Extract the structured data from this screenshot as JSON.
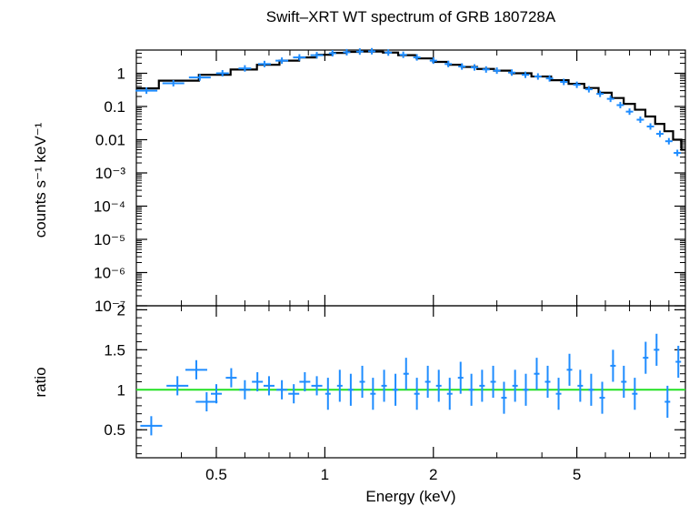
{
  "chart_data": [
    {
      "type": "scatter",
      "panel": "spectrum",
      "title": "Swift–XRT WT spectrum of GRB 180728A",
      "ylabel": "counts s⁻¹ keV⁻¹",
      "xlabel": "",
      "x_scale": "log",
      "y_scale": "log",
      "xlim": [
        0.3,
        10
      ],
      "ylim": [
        1e-07,
        5
      ],
      "ytick_labels": [
        "1",
        "0.1",
        "0.01",
        "10⁻³",
        "10⁻⁴",
        "10⁻⁵",
        "10⁻⁶",
        "10⁻⁷"
      ],
      "colors": {
        "data": "#1e8cff",
        "model": "#000000"
      },
      "data_x": [
        0.32,
        0.38,
        0.45,
        0.52,
        0.6,
        0.68,
        0.76,
        0.85,
        0.95,
        1.05,
        1.15,
        1.25,
        1.35,
        1.5,
        1.65,
        1.8,
        2.0,
        2.2,
        2.4,
        2.6,
        2.8,
        3.0,
        3.3,
        3.6,
        3.9,
        4.2,
        4.6,
        5.0,
        5.4,
        5.8,
        6.2,
        6.6,
        7.0,
        7.5,
        8.0,
        8.5,
        9.0,
        9.5
      ],
      "data_y": [
        0.3,
        0.5,
        0.75,
        1.0,
        1.4,
        1.9,
        2.4,
        3.0,
        3.5,
        4.0,
        4.3,
        4.5,
        4.6,
        4.2,
        3.6,
        3.0,
        2.4,
        1.9,
        1.6,
        1.5,
        1.3,
        1.2,
        1.05,
        0.9,
        0.8,
        0.7,
        0.55,
        0.45,
        0.33,
        0.24,
        0.17,
        0.11,
        0.07,
        0.04,
        0.025,
        0.015,
        0.009,
        0.004
      ],
      "model_x": [
        0.3,
        0.4,
        0.5,
        0.6,
        0.7,
        0.8,
        0.9,
        1.0,
        1.1,
        1.2,
        1.3,
        1.4,
        1.5,
        1.7,
        1.9,
        2.1,
        2.3,
        2.5,
        2.8,
        3.1,
        3.5,
        4.0,
        4.5,
        5.0,
        5.5,
        6.0,
        6.5,
        7.0,
        7.5,
        8.0,
        8.5,
        9.0,
        9.5,
        10.0
      ],
      "model_y": [
        0.35,
        0.6,
        0.9,
        1.3,
        1.8,
        2.4,
        3.0,
        3.6,
        4.1,
        4.4,
        4.5,
        4.5,
        4.2,
        3.5,
        2.8,
        2.2,
        1.8,
        1.55,
        1.35,
        1.2,
        1.0,
        0.8,
        0.62,
        0.48,
        0.36,
        0.26,
        0.18,
        0.12,
        0.08,
        0.05,
        0.03,
        0.018,
        0.01,
        0.005
      ]
    },
    {
      "type": "scatter",
      "panel": "ratio",
      "xlabel": "Energy (keV)",
      "ylabel": "ratio",
      "x_scale": "log",
      "y_scale": "linear",
      "xlim": [
        0.3,
        10
      ],
      "ylim": [
        0.15,
        2.05
      ],
      "xtick_labels": [
        "0.5",
        "1",
        "2",
        "5"
      ],
      "ytick_labels": [
        "0.5",
        "1",
        "1.5",
        "2"
      ],
      "reference_line": 1,
      "colors": {
        "data": "#1e8cff",
        "reference": "#22e022"
      },
      "x": [
        0.33,
        0.39,
        0.44,
        0.47,
        0.5,
        0.55,
        0.6,
        0.65,
        0.7,
        0.76,
        0.82,
        0.88,
        0.95,
        1.02,
        1.1,
        1.18,
        1.27,
        1.36,
        1.46,
        1.57,
        1.68,
        1.8,
        1.93,
        2.07,
        2.22,
        2.38,
        2.55,
        2.73,
        2.93,
        3.14,
        3.37,
        3.61,
        3.87,
        4.15,
        4.45,
        4.77,
        5.11,
        5.48,
        5.88,
        6.3,
        6.75,
        7.24,
        7.76,
        8.32,
        8.92,
        9.56
      ],
      "y": [
        0.55,
        1.05,
        1.25,
        0.85,
        0.95,
        1.15,
        1.0,
        1.1,
        1.05,
        1.0,
        0.95,
        1.1,
        1.05,
        0.95,
        1.05,
        1.0,
        1.1,
        0.95,
        1.05,
        1.0,
        1.2,
        0.95,
        1.1,
        1.05,
        0.95,
        1.15,
        1.0,
        1.05,
        1.1,
        0.9,
        1.05,
        1.0,
        1.2,
        1.1,
        0.95,
        1.25,
        1.05,
        1.0,
        0.9,
        1.3,
        1.1,
        0.95,
        1.4,
        1.5,
        0.85,
        1.35
      ]
    }
  ]
}
